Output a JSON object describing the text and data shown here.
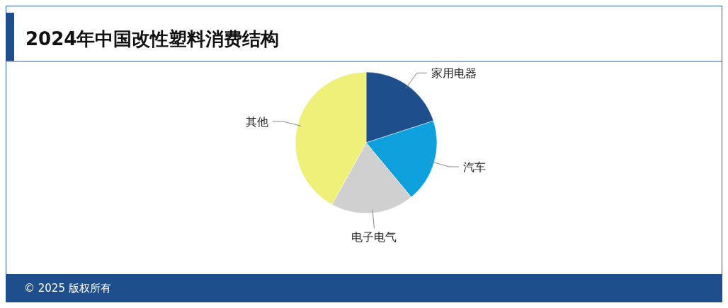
{
  "chart_data": {
    "type": "pie",
    "title": "2024年中国改性塑料消费结构",
    "categories": [
      "家用电器",
      "汽车",
      "电子电气",
      "其他"
    ],
    "values": [
      20,
      19,
      19,
      42
    ],
    "colors": [
      "#1f4e8c",
      "#0ea0dc",
      "#d0d0d0",
      "#eef07a"
    ],
    "annotations": [
      "© 2025 版权所有"
    ]
  }
}
